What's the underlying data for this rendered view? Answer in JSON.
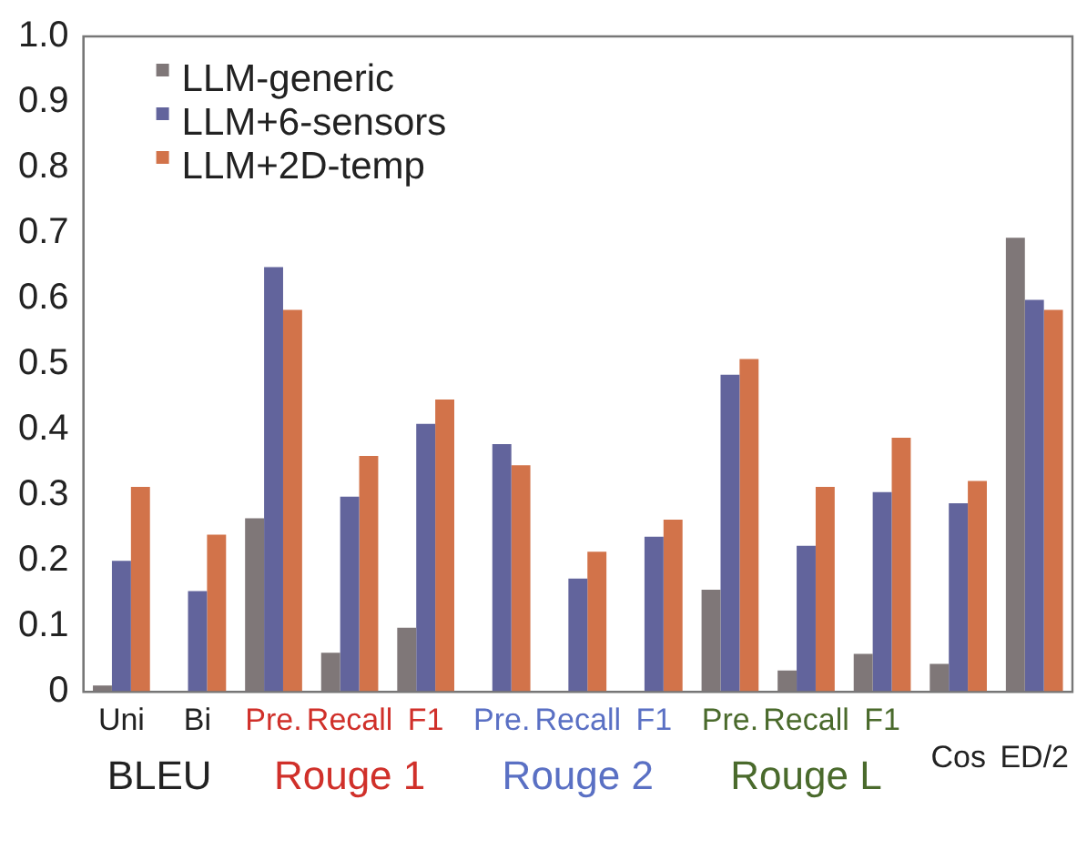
{
  "chart_data": {
    "type": "bar",
    "categories": [
      "Uni",
      "Bi",
      "Pre.",
      "Recall",
      "F1",
      "Pre.",
      "Recall",
      "F1",
      "Pre.",
      "Recall",
      "F1",
      "Cos",
      "ED/2"
    ],
    "series": [
      {
        "name": "LLM-generic",
        "color": "#7f7778",
        "values": [
          0.01,
          null,
          0.265,
          0.06,
          0.098,
          null,
          null,
          null,
          0.156,
          0.033,
          0.058,
          0.043,
          0.693
        ]
      },
      {
        "name": "LLM+6-sensors",
        "color": "#62649c",
        "values": [
          0.2,
          0.154,
          0.648,
          0.298,
          0.409,
          0.378,
          0.173,
          0.237,
          0.484,
          0.223,
          0.305,
          0.288,
          0.598
        ]
      },
      {
        "name": "LLM+2D-temp",
        "color": "#d2734a",
        "values": [
          0.313,
          0.24,
          0.583,
          0.36,
          0.446,
          0.346,
          0.214,
          0.263,
          0.508,
          0.313,
          0.388,
          0.322,
          0.583
        ]
      }
    ],
    "annotations": [
      "BLEU",
      "Rouge 1",
      "Rouge 2",
      "Rouge L"
    ],
    "ylim": [
      0,
      1
    ],
    "yticks": [
      0,
      0.1,
      0.2,
      0.3,
      0.4,
      0.5,
      0.6,
      0.7,
      0.8,
      0.9,
      {
        "value": 1,
        "label": "1.0"
      }
    ],
    "grid": false,
    "legend": "top left"
  }
}
